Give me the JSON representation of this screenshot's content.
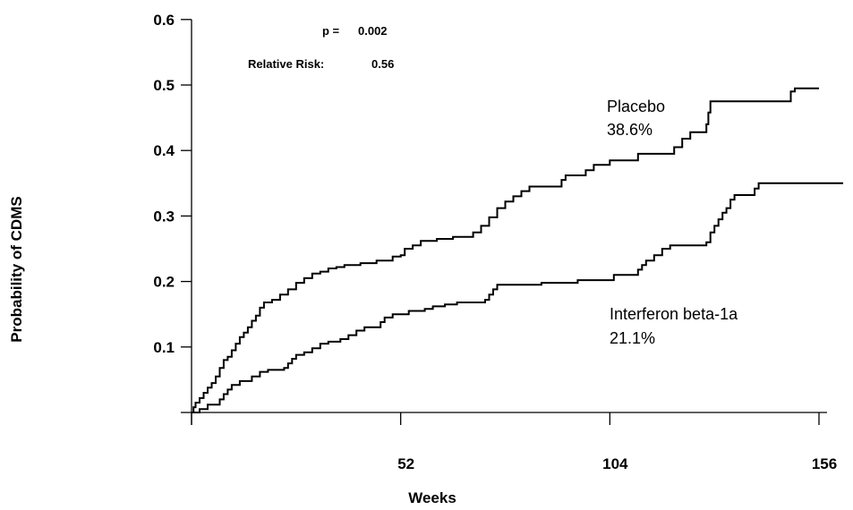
{
  "chart_data": {
    "type": "line",
    "title": "",
    "xlabel": "Weeks",
    "ylabel": "Probability of CDMS",
    "xlim": [
      0,
      158
    ],
    "ylim": [
      0,
      0.6
    ],
    "x_ticks": [
      0,
      52,
      104,
      156
    ],
    "x_tick_labels": [
      "",
      "52",
      "104",
      "156"
    ],
    "y_ticks": [
      0,
      0.1,
      0.2,
      0.3,
      0.4,
      0.5,
      0.6
    ],
    "y_tick_labels": [
      "",
      "0.1",
      "0.2",
      "0.3",
      "0.4",
      "0.5",
      "0.6"
    ],
    "grid": false,
    "annotations": {
      "p_value_label": "p =",
      "p_value": "0.002",
      "relative_risk_label": "Relative Risk:",
      "relative_risk": "0.56"
    },
    "series": [
      {
        "name": "Placebo",
        "end_label": "38.6%",
        "step": true,
        "points": [
          [
            0,
            0
          ],
          [
            0.5,
            0.008
          ],
          [
            1,
            0.015
          ],
          [
            2,
            0.022
          ],
          [
            3,
            0.03
          ],
          [
            4,
            0.038
          ],
          [
            5,
            0.045
          ],
          [
            6,
            0.055
          ],
          [
            7,
            0.068
          ],
          [
            8,
            0.08
          ],
          [
            9,
            0.085
          ],
          [
            10,
            0.095
          ],
          [
            11,
            0.105
          ],
          [
            12,
            0.115
          ],
          [
            13,
            0.122
          ],
          [
            14,
            0.13
          ],
          [
            15,
            0.14
          ],
          [
            16,
            0.148
          ],
          [
            17,
            0.16
          ],
          [
            18,
            0.168
          ],
          [
            20,
            0.172
          ],
          [
            22,
            0.18
          ],
          [
            24,
            0.188
          ],
          [
            26,
            0.198
          ],
          [
            28,
            0.205
          ],
          [
            30,
            0.212
          ],
          [
            32,
            0.215
          ],
          [
            34,
            0.22
          ],
          [
            36,
            0.222
          ],
          [
            38,
            0.225
          ],
          [
            42,
            0.228
          ],
          [
            46,
            0.232
          ],
          [
            50,
            0.238
          ],
          [
            52,
            0.24
          ],
          [
            53,
            0.25
          ],
          [
            55,
            0.255
          ],
          [
            57,
            0.262
          ],
          [
            61,
            0.265
          ],
          [
            65,
            0.268
          ],
          [
            70,
            0.275
          ],
          [
            72,
            0.285
          ],
          [
            74,
            0.298
          ],
          [
            76,
            0.312
          ],
          [
            78,
            0.322
          ],
          [
            80,
            0.33
          ],
          [
            82,
            0.338
          ],
          [
            84,
            0.345
          ],
          [
            92,
            0.355
          ],
          [
            93,
            0.362
          ],
          [
            98,
            0.37
          ],
          [
            100,
            0.378
          ],
          [
            104,
            0.385
          ],
          [
            111,
            0.395
          ],
          [
            120,
            0.405
          ],
          [
            122,
            0.418
          ],
          [
            124,
            0.428
          ],
          [
            128,
            0.44
          ],
          [
            128.5,
            0.458
          ],
          [
            129,
            0.475
          ],
          [
            149,
            0.49
          ],
          [
            150,
            0.495
          ],
          [
            156,
            0.495
          ]
        ]
      },
      {
        "name": "Interferon beta-1a",
        "end_label": "21.1%",
        "step": true,
        "points": [
          [
            0,
            0
          ],
          [
            2,
            0.005
          ],
          [
            4,
            0.012
          ],
          [
            7,
            0.02
          ],
          [
            8,
            0.028
          ],
          [
            9,
            0.035
          ],
          [
            10,
            0.042
          ],
          [
            12,
            0.048
          ],
          [
            15,
            0.055
          ],
          [
            17,
            0.062
          ],
          [
            19,
            0.065
          ],
          [
            23,
            0.068
          ],
          [
            24,
            0.075
          ],
          [
            25,
            0.082
          ],
          [
            26,
            0.088
          ],
          [
            28,
            0.092
          ],
          [
            30,
            0.098
          ],
          [
            32,
            0.105
          ],
          [
            34,
            0.108
          ],
          [
            37,
            0.112
          ],
          [
            39,
            0.118
          ],
          [
            41,
            0.125
          ],
          [
            43,
            0.13
          ],
          [
            47,
            0.138
          ],
          [
            48,
            0.145
          ],
          [
            50,
            0.15
          ],
          [
            54,
            0.155
          ],
          [
            58,
            0.158
          ],
          [
            60,
            0.162
          ],
          [
            63,
            0.165
          ],
          [
            66,
            0.168
          ],
          [
            73,
            0.172
          ],
          [
            74,
            0.18
          ],
          [
            75,
            0.188
          ],
          [
            76,
            0.195
          ],
          [
            87,
            0.198
          ],
          [
            96,
            0.202
          ],
          [
            105,
            0.21
          ],
          [
            111,
            0.218
          ],
          [
            112,
            0.225
          ],
          [
            113,
            0.232
          ],
          [
            115,
            0.24
          ],
          [
            117,
            0.25
          ],
          [
            119,
            0.255
          ],
          [
            128,
            0.26
          ],
          [
            129,
            0.275
          ],
          [
            130,
            0.285
          ],
          [
            131,
            0.295
          ],
          [
            132,
            0.305
          ],
          [
            133,
            0.312
          ],
          [
            134,
            0.325
          ],
          [
            135,
            0.332
          ],
          [
            140,
            0.342
          ],
          [
            141,
            0.35
          ],
          [
            162,
            0.35
          ]
        ]
      }
    ]
  }
}
